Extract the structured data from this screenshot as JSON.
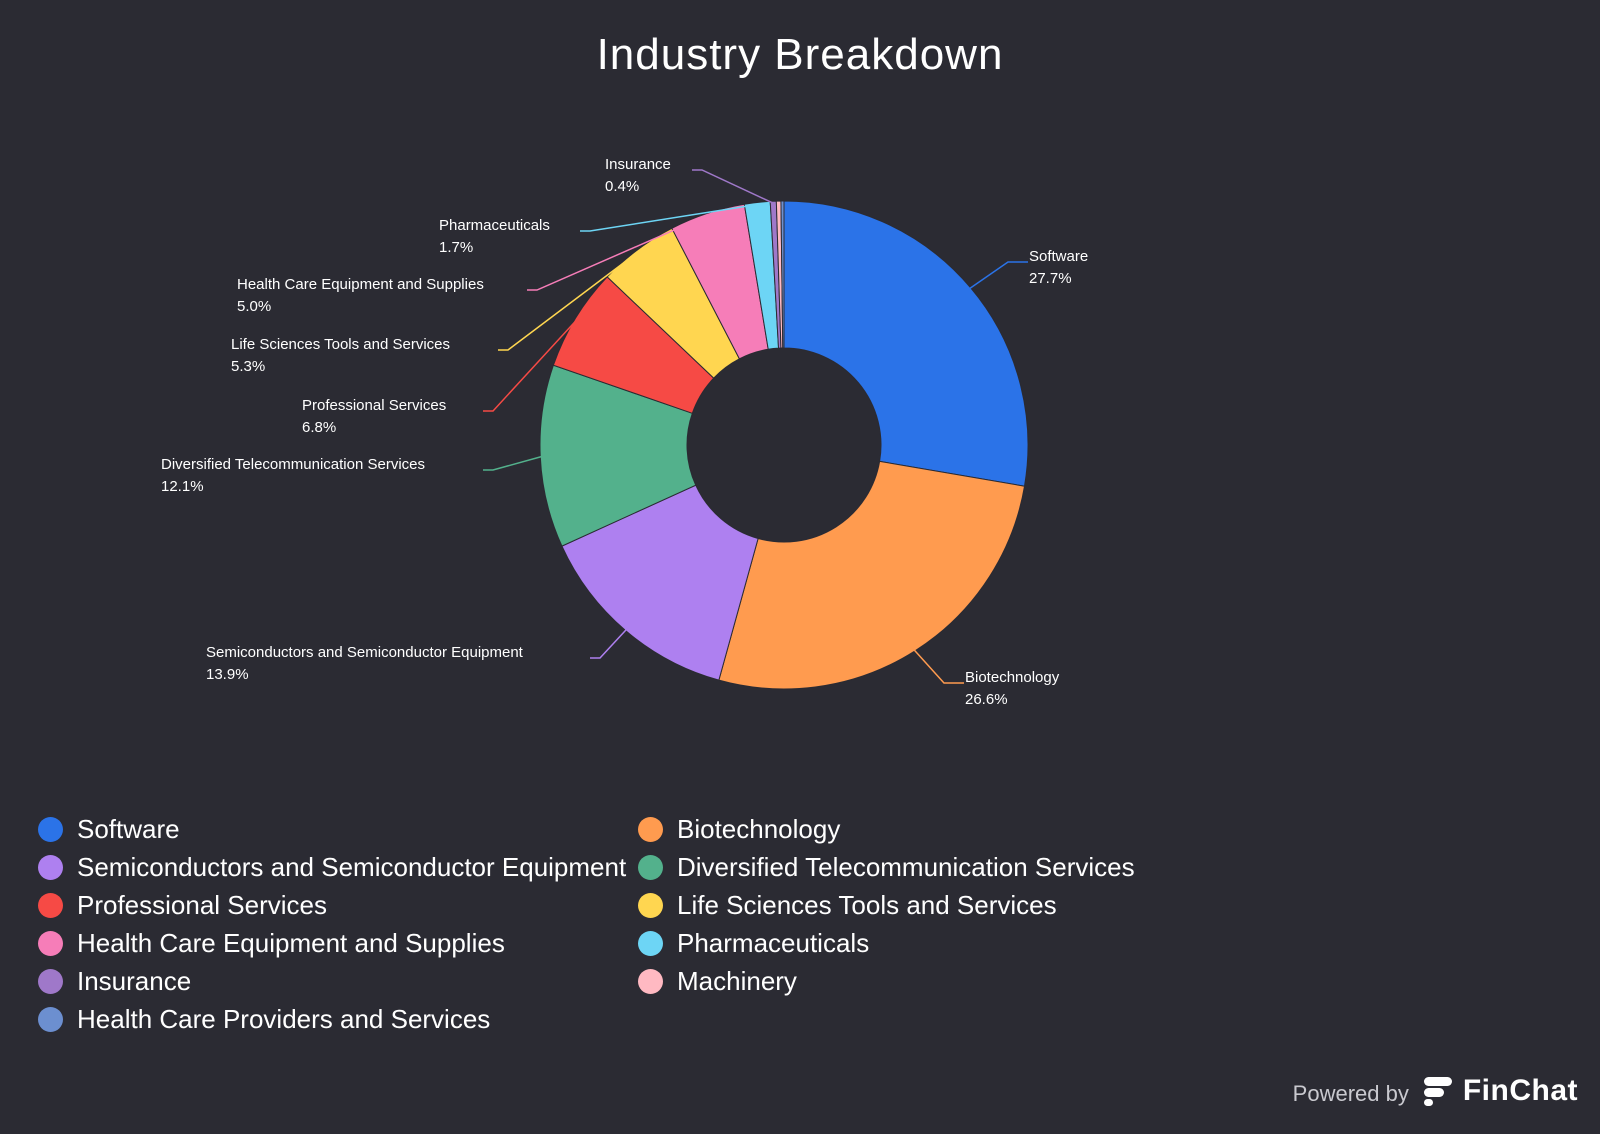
{
  "chart_data": {
    "type": "pie",
    "variant": "donut",
    "title": "Industry Breakdown",
    "slices": [
      {
        "label": "Software",
        "value": 27.7,
        "value_label": "27.7%",
        "color": "#2b73e8",
        "label_side": "right",
        "show_label": true
      },
      {
        "label": "Biotechnology",
        "value": 26.6,
        "value_label": "26.6%",
        "color": "#ff9b4f",
        "label_side": "right",
        "show_label": true
      },
      {
        "label": "Semiconductors and Semiconductor Equipment",
        "value": 13.9,
        "value_label": "13.9%",
        "color": "#ae80f0",
        "label_side": "left",
        "show_label": true
      },
      {
        "label": "Diversified Telecommunication Services",
        "value": 12.1,
        "value_label": "12.1%",
        "color": "#53b18c",
        "label_side": "left",
        "show_label": true
      },
      {
        "label": "Professional Services",
        "value": 6.8,
        "value_label": "6.8%",
        "color": "#f64a45",
        "label_side": "left",
        "show_label": true
      },
      {
        "label": "Life Sciences Tools and Services",
        "value": 5.3,
        "value_label": "5.3%",
        "color": "#ffd650",
        "label_side": "left",
        "show_label": true
      },
      {
        "label": "Health Care Equipment and Supplies",
        "value": 5.0,
        "value_label": "5.0%",
        "color": "#f67db8",
        "label_side": "left",
        "show_label": true
      },
      {
        "label": "Pharmaceuticals",
        "value": 1.7,
        "value_label": "1.7%",
        "color": "#6dd5f5",
        "label_side": "left",
        "show_label": true
      },
      {
        "label": "Insurance",
        "value": 0.4,
        "value_label": "0.4%",
        "color": "#9f78c9",
        "label_side": "left",
        "show_label": true
      },
      {
        "label": "Machinery",
        "value": 0.3,
        "value_label": "",
        "color": "#ffb9c2",
        "label_side": "left",
        "show_label": false
      },
      {
        "label": "Health Care Providers and Services",
        "value": 0.2,
        "value_label": "",
        "color": "#6c8fd0",
        "label_side": "left",
        "show_label": false
      }
    ],
    "legend_position": "bottom"
  },
  "branding": {
    "powered_by": "Powered by",
    "name": "FinChat"
  }
}
